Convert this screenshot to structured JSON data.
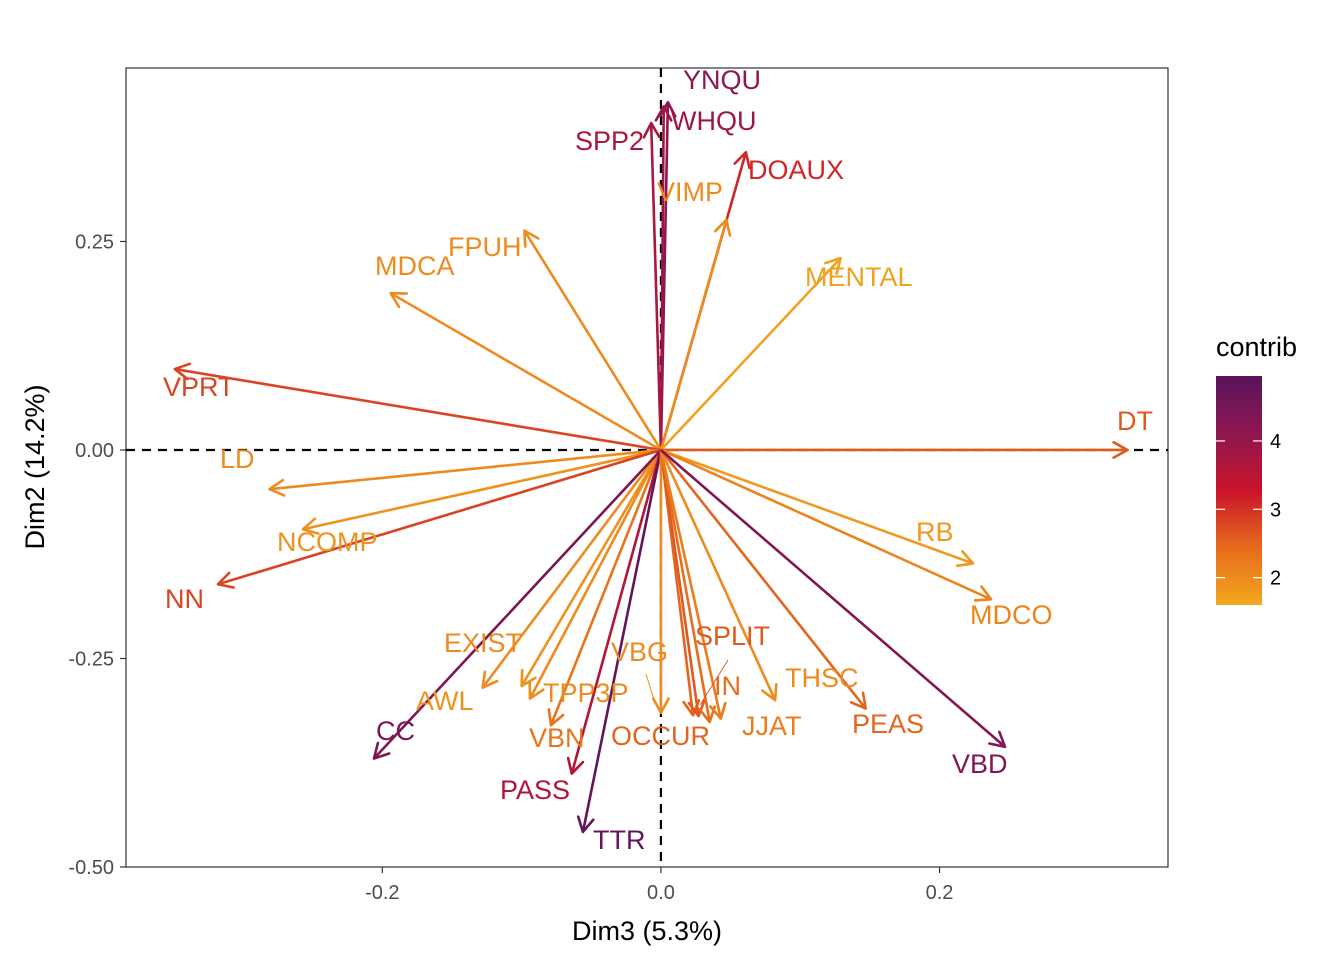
{
  "chart_data": {
    "type": "scatter",
    "subtype": "pca-variable-biplot",
    "title": "",
    "xlabel": "Dim3 (5.3%)",
    "ylabel": "Dim2 (14.2%)",
    "xlim": [
      -0.384,
      0.364
    ],
    "ylim": [
      -0.5,
      0.458
    ],
    "xticks": [
      {
        "value": -0.2,
        "label": "-0.2"
      },
      {
        "value": 0.0,
        "label": "0.0"
      },
      {
        "value": 0.2,
        "label": "0.2"
      }
    ],
    "yticks": [
      {
        "value": -0.5,
        "label": "-0.50"
      },
      {
        "value": -0.25,
        "label": "-0.25"
      },
      {
        "value": 0.0,
        "label": "0.00"
      },
      {
        "value": 0.25,
        "label": "0.25"
      }
    ],
    "grid": false,
    "reference_lines": {
      "x": 0,
      "y": 0,
      "style": "dashed"
    },
    "legend": {
      "title": "contrib",
      "placement": "right",
      "range": [
        1.6,
        4.95
      ],
      "ticks": [
        {
          "value": 2,
          "label": "2"
        },
        {
          "value": 3,
          "label": "3"
        },
        {
          "value": 4,
          "label": "4"
        }
      ],
      "colors": [
        "#f3a81f",
        "#e66b1c",
        "#c9142a",
        "#8e1750",
        "#5a145c"
      ]
    },
    "variables": [
      {
        "name": "YNQU",
        "x": 0.005,
        "y": 0.417,
        "contrib": 4.1
      },
      {
        "name": "WHQU",
        "x": 0.002,
        "y": 0.412,
        "contrib": 3.9
      },
      {
        "name": "SPP2",
        "x": -0.007,
        "y": 0.392,
        "contrib": 3.7
      },
      {
        "name": "DOAUX",
        "x": 0.061,
        "y": 0.357,
        "contrib": 3.1
      },
      {
        "name": "VIMP",
        "x": 0.047,
        "y": 0.276,
        "contrib": 2.0
      },
      {
        "name": "FPUH",
        "x": -0.098,
        "y": 0.263,
        "contrib": 2.0
      },
      {
        "name": "MDCA",
        "x": -0.194,
        "y": 0.188,
        "contrib": 2.0
      },
      {
        "name": "MENTAL",
        "x": 0.129,
        "y": 0.23,
        "contrib": 1.7
      },
      {
        "name": "VPRT",
        "x": -0.349,
        "y": 0.097,
        "contrib": 2.8
      },
      {
        "name": "DT",
        "x": 0.335,
        "y": 0.0,
        "contrib": 2.6
      },
      {
        "name": "LD",
        "x": -0.281,
        "y": -0.047,
        "contrib": 2.0
      },
      {
        "name": "NCOMP",
        "x": -0.257,
        "y": -0.095,
        "contrib": 1.9
      },
      {
        "name": "NN",
        "x": -0.318,
        "y": -0.161,
        "contrib": 2.8
      },
      {
        "name": "RB",
        "x": 0.224,
        "y": -0.136,
        "contrib": 1.8
      },
      {
        "name": "MDCO",
        "x": 0.237,
        "y": -0.179,
        "contrib": 2.1
      },
      {
        "name": "EXIST",
        "x": -0.128,
        "y": -0.285,
        "contrib": 2.0
      },
      {
        "name": "AWL",
        "x": -0.1,
        "y": -0.283,
        "contrib": 1.9
      },
      {
        "name": "TPP3P",
        "x": -0.094,
        "y": -0.298,
        "contrib": 2.0
      },
      {
        "name": "VBN",
        "x": -0.079,
        "y": -0.33,
        "contrib": 2.3
      },
      {
        "name": "CC",
        "x": -0.206,
        "y": -0.37,
        "contrib": 4.4
      },
      {
        "name": "PASS",
        "x": -0.064,
        "y": -0.388,
        "contrib": 3.6
      },
      {
        "name": "TTR",
        "x": -0.056,
        "y": -0.458,
        "contrib": 4.8
      },
      {
        "name": "VBG",
        "x": 0.0,
        "y": -0.315,
        "contrib": 2.0
      },
      {
        "name": "OCCUR",
        "x": 0.023,
        "y": -0.318,
        "contrib": 2.5
      },
      {
        "name": "SPLIT",
        "x": 0.027,
        "y": -0.319,
        "contrib": 2.6
      },
      {
        "name": "IN",
        "x": 0.035,
        "y": -0.326,
        "contrib": 2.4
      },
      {
        "name": "JJAT",
        "x": 0.043,
        "y": -0.322,
        "contrib": 2.2
      },
      {
        "name": "THSC",
        "x": 0.082,
        "y": -0.3,
        "contrib": 2.0
      },
      {
        "name": "PEAS",
        "x": 0.147,
        "y": -0.31,
        "contrib": 2.5
      },
      {
        "name": "VBD",
        "x": 0.247,
        "y": -0.356,
        "contrib": 4.3
      }
    ]
  }
}
